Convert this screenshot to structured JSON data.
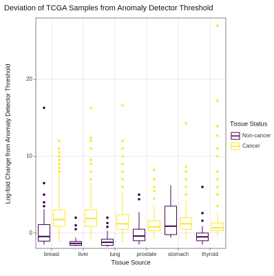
{
  "chart_data": {
    "type": "boxplot",
    "title": "Deviation of TCGA Samples from Anomaly Detector Threshold",
    "x_label": "Tissue Source",
    "y_label": "Log-fold Change from Anomaly Detector Threshold",
    "categories": [
      "breast",
      "liver",
      "lung",
      "prostate",
      "stomach",
      "thyroid"
    ],
    "ylim": [
      -2,
      28
    ],
    "yticks": [
      0,
      10,
      20
    ],
    "grid": true,
    "legend_title": "Tissue Status",
    "legend": "right",
    "series": [
      {
        "name": "Non-cancer",
        "color": "#440154",
        "boxes": [
          {
            "min": -1.5,
            "q1": -1.05,
            "median": -0.45,
            "q3": 1.1,
            "max": 3.1,
            "outliers": [
              3.5,
              4,
              5,
              6.5,
              16.3
            ]
          },
          {
            "min": -1.7,
            "q1": -1.6,
            "median": -1.35,
            "q3": -1.1,
            "max": -0.6,
            "outliers": [
              0.5,
              1,
              2
            ]
          },
          {
            "min": -1.8,
            "q1": -1.6,
            "median": -1.2,
            "q3": -0.8,
            "max": 0.3,
            "outliers": [
              0.8,
              1.3,
              2
            ]
          },
          {
            "min": -1.5,
            "q1": -1.0,
            "median": -0.4,
            "q3": 0.5,
            "max": 2.7,
            "outliers": [
              4.4,
              5
            ]
          },
          {
            "min": -0.6,
            "q1": -0.2,
            "median": 0.9,
            "q3": 3.5,
            "max": 6.2,
            "outliers": []
          },
          {
            "min": -1.5,
            "q1": -1.0,
            "median": -0.5,
            "q3": 0,
            "max": 0.9,
            "outliers": [
              1.6,
              2.6,
              6
            ]
          }
        ]
      },
      {
        "name": "Cancer",
        "color": "#FDE725",
        "boxes": [
          {
            "min": -1.2,
            "q1": 0.9,
            "median": 1.75,
            "q3": 3.0,
            "max": 7.7,
            "outliers": [
              8,
              8.5,
              9,
              9.5,
              10,
              10.5,
              11,
              12
            ]
          },
          {
            "min": -1.0,
            "q1": 0.9,
            "median": 1.9,
            "q3": 3.0,
            "max": 6.5,
            "outliers": [
              7,
              8,
              9,
              9.5,
              11,
              12,
              12.4,
              16.3
            ]
          },
          {
            "min": -1.2,
            "q1": 0.5,
            "median": 1.2,
            "q3": 2.4,
            "max": 5.2,
            "outliers": [
              6,
              7,
              8,
              9,
              10,
              11,
              12,
              16.6
            ]
          },
          {
            "min": -0.6,
            "q1": 0.3,
            "median": 0.8,
            "q3": 1.6,
            "max": 3.5,
            "outliers": [
              4.5,
              5.5,
              6,
              7,
              8.2
            ]
          },
          {
            "min": -0.8,
            "q1": 0.5,
            "median": 1.2,
            "q3": 2.0,
            "max": 4.2,
            "outliers": [
              5,
              6,
              7,
              8,
              8.6,
              14.3
            ]
          },
          {
            "min": -0.5,
            "q1": 0.3,
            "median": 0.7,
            "q3": 1.3,
            "max": 2.7,
            "outliers": [
              3.5,
              5,
              6,
              7,
              8,
              10,
              11,
              12.7,
              13.9,
              17.2,
              27
            ]
          }
        ]
      }
    ]
  }
}
